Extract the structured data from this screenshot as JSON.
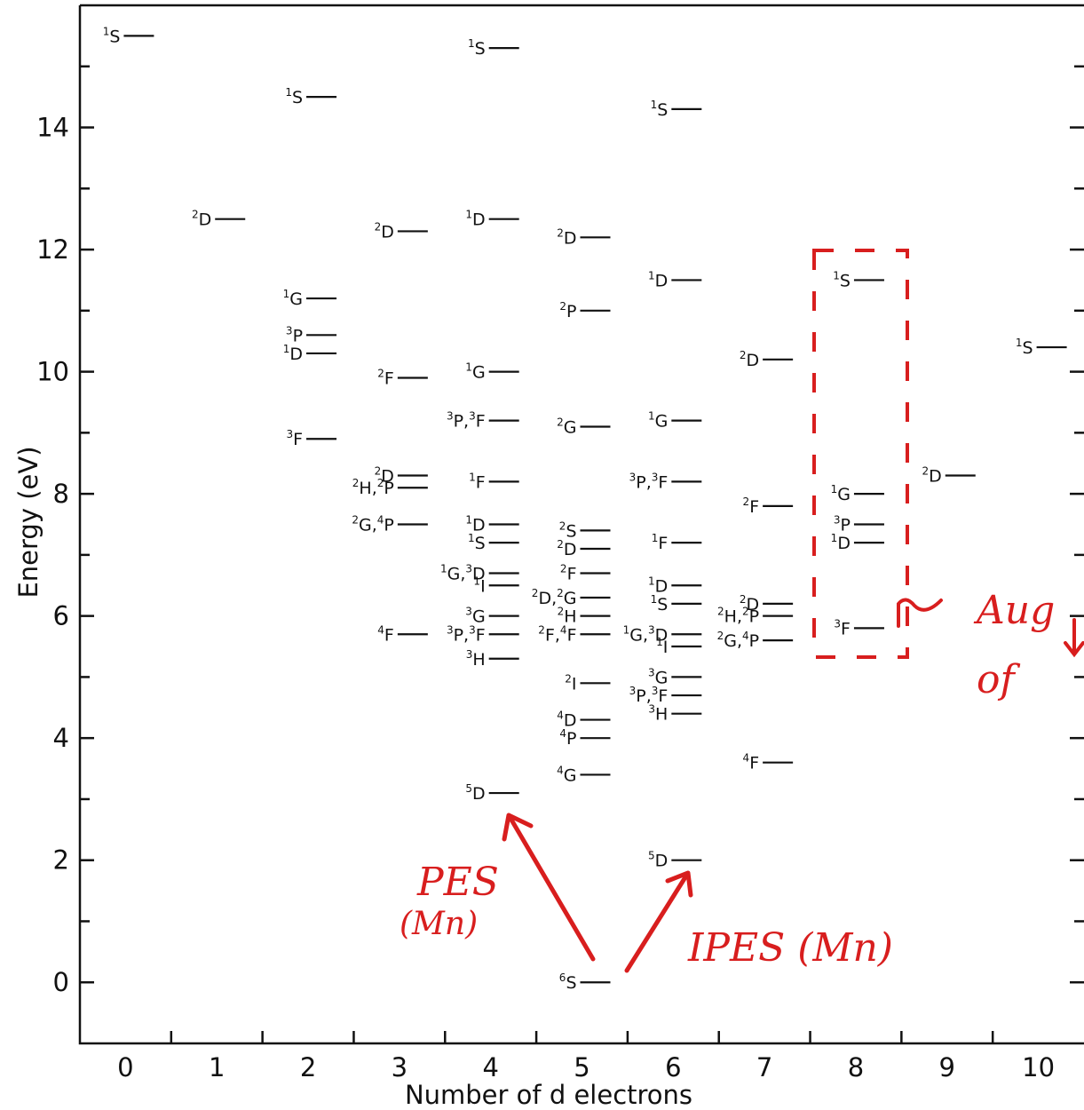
{
  "chart_data": {
    "type": "scatter",
    "xlabel": "Number of d electrons",
    "ylabel": "Energy (eV)",
    "xlim": [
      -0.5,
      10.5
    ],
    "ylim": [
      -1,
      16
    ],
    "x_ticks": [
      0,
      1,
      2,
      3,
      4,
      5,
      6,
      7,
      8,
      9,
      10
    ],
    "y_ticks": [
      0,
      2,
      4,
      6,
      8,
      10,
      12,
      14
    ],
    "grid": false,
    "levels": [
      {
        "n": 0,
        "label": "1S",
        "energy": 15.5
      },
      {
        "n": 1,
        "label": "2D",
        "energy": 12.5
      },
      {
        "n": 2,
        "label": "1S",
        "energy": 14.5
      },
      {
        "n": 2,
        "label": "1G",
        "energy": 11.2
      },
      {
        "n": 2,
        "label": "3P",
        "energy": 10.6
      },
      {
        "n": 2,
        "label": "1D",
        "energy": 10.3
      },
      {
        "n": 2,
        "label": "3F",
        "energy": 8.9
      },
      {
        "n": 3,
        "label": "2D",
        "energy": 12.3
      },
      {
        "n": 3,
        "label": "2F",
        "energy": 9.9
      },
      {
        "n": 3,
        "label": "2D",
        "energy": 8.3
      },
      {
        "n": 3,
        "label": "2H, 2P",
        "energy": 8.1
      },
      {
        "n": 3,
        "label": "2G, 4P",
        "energy": 7.5
      },
      {
        "n": 3,
        "label": "4F",
        "energy": 5.7
      },
      {
        "n": 4,
        "label": "1S",
        "energy": 15.3
      },
      {
        "n": 4,
        "label": "1D",
        "energy": 12.5
      },
      {
        "n": 4,
        "label": "1G",
        "energy": 10.0
      },
      {
        "n": 4,
        "label": "3P, 3F",
        "energy": 9.2
      },
      {
        "n": 4,
        "label": "1F",
        "energy": 8.2
      },
      {
        "n": 4,
        "label": "1D",
        "energy": 7.5
      },
      {
        "n": 4,
        "label": "1S",
        "energy": 7.2
      },
      {
        "n": 4,
        "label": "1G, 3D",
        "energy": 6.7
      },
      {
        "n": 4,
        "label": "1I",
        "energy": 6.5
      },
      {
        "n": 4,
        "label": "3G",
        "energy": 6.0
      },
      {
        "n": 4,
        "label": "3P, 3F",
        "energy": 5.7
      },
      {
        "n": 4,
        "label": "3H",
        "energy": 5.3
      },
      {
        "n": 4,
        "label": "5D",
        "energy": 3.1
      },
      {
        "n": 5,
        "label": "2D",
        "energy": 12.2
      },
      {
        "n": 5,
        "label": "2P",
        "energy": 11.0
      },
      {
        "n": 5,
        "label": "2G",
        "energy": 9.1
      },
      {
        "n": 5,
        "label": "2S",
        "energy": 7.4
      },
      {
        "n": 5,
        "label": "2D",
        "energy": 7.1
      },
      {
        "n": 5,
        "label": "2F",
        "energy": 6.7
      },
      {
        "n": 5,
        "label": "2D, 2G",
        "energy": 6.3
      },
      {
        "n": 5,
        "label": "2H",
        "energy": 6.0
      },
      {
        "n": 5,
        "label": "2F, 4F",
        "energy": 5.7
      },
      {
        "n": 5,
        "label": "2I",
        "energy": 4.9
      },
      {
        "n": 5,
        "label": "4D",
        "energy": 4.3
      },
      {
        "n": 5,
        "label": "4P",
        "energy": 4.0
      },
      {
        "n": 5,
        "label": "4G",
        "energy": 3.4
      },
      {
        "n": 5,
        "label": "6S",
        "energy": 0.0
      },
      {
        "n": 6,
        "label": "1S",
        "energy": 14.3
      },
      {
        "n": 6,
        "label": "1D",
        "energy": 11.5
      },
      {
        "n": 6,
        "label": "1G",
        "energy": 9.2
      },
      {
        "n": 6,
        "label": "3P, 3F",
        "energy": 8.2
      },
      {
        "n": 6,
        "label": "1F",
        "energy": 7.2
      },
      {
        "n": 6,
        "label": "1D",
        "energy": 6.5
      },
      {
        "n": 6,
        "label": "1S",
        "energy": 6.2
      },
      {
        "n": 6,
        "label": "1G, 3D",
        "energy": 5.7
      },
      {
        "n": 6,
        "label": "1I",
        "energy": 5.5
      },
      {
        "n": 6,
        "label": "3G",
        "energy": 5.0
      },
      {
        "n": 6,
        "label": "3P, 3F",
        "energy": 4.7
      },
      {
        "n": 6,
        "label": "3H",
        "energy": 4.4
      },
      {
        "n": 6,
        "label": "5D",
        "energy": 2.0
      },
      {
        "n": 7,
        "label": "2D",
        "energy": 10.2
      },
      {
        "n": 7,
        "label": "2F",
        "energy": 7.8
      },
      {
        "n": 7,
        "label": "2D",
        "energy": 6.2
      },
      {
        "n": 7,
        "label": "2H, 2P",
        "energy": 6.0
      },
      {
        "n": 7,
        "label": "2G, 4P",
        "energy": 5.6
      },
      {
        "n": 7,
        "label": "4F",
        "energy": 3.6
      },
      {
        "n": 8,
        "label": "1S",
        "energy": 11.5
      },
      {
        "n": 8,
        "label": "1G",
        "energy": 8.0
      },
      {
        "n": 8,
        "label": "3P",
        "energy": 7.5
      },
      {
        "n": 8,
        "label": "1D",
        "energy": 7.2
      },
      {
        "n": 8,
        "label": "3F",
        "energy": 5.8
      },
      {
        "n": 9,
        "label": "2D",
        "energy": 8.3
      },
      {
        "n": 10,
        "label": "1S",
        "energy": 10.4
      }
    ]
  },
  "annotations": {
    "pes_label": "PES",
    "pes_sub": "(Mn)",
    "ipes_label": "IPES (Mn)",
    "auger_label": "Aug",
    "auger_sub": "of"
  },
  "colors": {
    "ink": "#111111",
    "annotation": "#d81e1e",
    "background": "#ffffff"
  }
}
